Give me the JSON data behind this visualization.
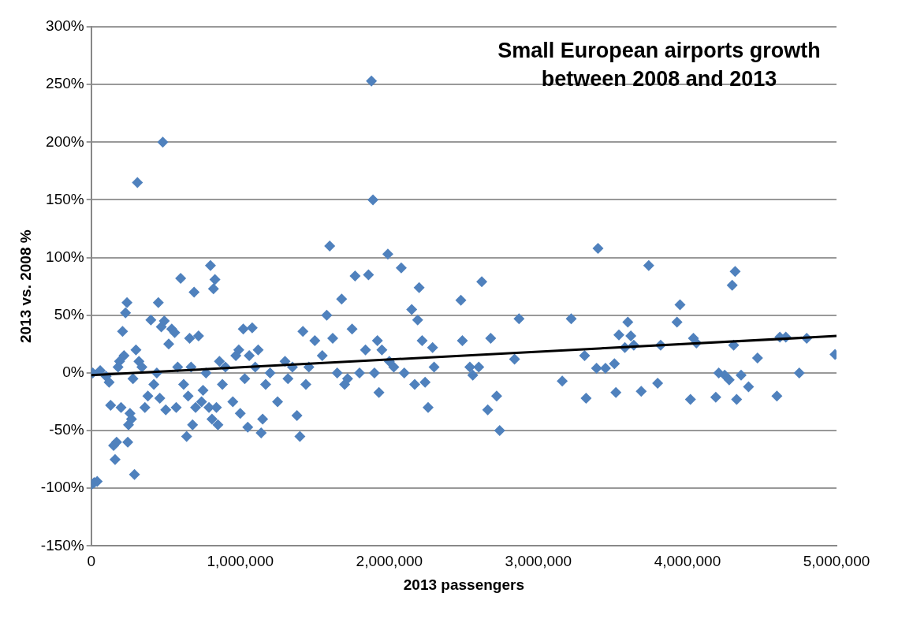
{
  "chart_data": {
    "type": "scatter",
    "title": "Small European airports growth between 2008 and 2013",
    "xlabel": "2013 passengers",
    "ylabel": "2013 vs. 2008 %",
    "grid": "y",
    "legend": false,
    "xlim": [
      0,
      5000000
    ],
    "xticks": [
      0,
      {
        "value": 1000000,
        "label": "1,000,000"
      },
      {
        "value": 2000000,
        "label": "2,000,000"
      },
      {
        "value": 3000000,
        "label": "3,000,000"
      },
      {
        "value": 4000000,
        "label": "4,000,000"
      },
      {
        "value": 5000000,
        "label": "5,000,000"
      }
    ],
    "ylim": [
      -150,
      300
    ],
    "yticks": [
      {
        "value": -150,
        "label": "-150%"
      },
      {
        "value": -100,
        "label": "-100%"
      },
      {
        "value": -50,
        "label": "-50%"
      },
      {
        "value": 0,
        "label": "0%"
      },
      {
        "value": 50,
        "label": "50%"
      },
      {
        "value": 100,
        "label": "100%"
      },
      {
        "value": 150,
        "label": "150%"
      },
      {
        "value": 200,
        "label": "200%"
      },
      {
        "value": 250,
        "label": "250%"
      },
      {
        "value": 300,
        "label": "300%"
      }
    ],
    "series": [
      {
        "color": "#4f81bd",
        "marker": "diamond",
        "x": [
          0,
          20000,
          40000,
          10000,
          60000,
          100000,
          120000,
          130000,
          150000,
          160000,
          170000,
          180000,
          190000,
          200000,
          210000,
          220000,
          230000,
          240000,
          245000,
          250000,
          260000,
          270000,
          280000,
          290000,
          300000,
          310000,
          320000,
          340000,
          360000,
          380000,
          400000,
          420000,
          440000,
          450000,
          460000,
          470000,
          480000,
          490000,
          500000,
          520000,
          540000,
          560000,
          570000,
          580000,
          600000,
          620000,
          640000,
          650000,
          660000,
          670000,
          680000,
          690000,
          700000,
          720000,
          740000,
          750000,
          770000,
          790000,
          800000,
          810000,
          820000,
          830000,
          840000,
          850000,
          860000,
          880000,
          900000,
          950000,
          970000,
          990000,
          1000000,
          1020000,
          1030000,
          1050000,
          1060000,
          1080000,
          1100000,
          1120000,
          1140000,
          1150000,
          1170000,
          1200000,
          1250000,
          1300000,
          1320000,
          1350000,
          1380000,
          1400000,
          1420000,
          1440000,
          1460000,
          1500000,
          1550000,
          1580000,
          1600000,
          1620000,
          1650000,
          1680000,
          1700000,
          1720000,
          1750000,
          1770000,
          1800000,
          1840000,
          1860000,
          1880000,
          1890000,
          1900000,
          1920000,
          1930000,
          1950000,
          1990000,
          2000000,
          2030000,
          2080000,
          2100000,
          2150000,
          2170000,
          2190000,
          2200000,
          2220000,
          2240000,
          2260000,
          2290000,
          2300000,
          2480000,
          2490000,
          2540000,
          2560000,
          2600000,
          2620000,
          2660000,
          2680000,
          2720000,
          2740000,
          2840000,
          2870000,
          3160000,
          3220000,
          3310000,
          3320000,
          3390000,
          3400000,
          3450000,
          3510000,
          3520000,
          3540000,
          3580000,
          3600000,
          3620000,
          3640000,
          3690000,
          3740000,
          3800000,
          3820000,
          3930000,
          3950000,
          4020000,
          4040000,
          4060000,
          4190000,
          4210000,
          4250000,
          4280000,
          4300000,
          4310000,
          4320000,
          4330000,
          4360000,
          4410000,
          4470000,
          4600000,
          4620000,
          4660000,
          4750000,
          4800000,
          4990000
        ],
        "values": [
          -97,
          -95,
          -94,
          0,
          2,
          -3,
          -8,
          -28,
          -63,
          -75,
          -60,
          5,
          10,
          -30,
          36,
          15,
          52,
          61,
          -60,
          -45,
          -35,
          -40,
          -5,
          -88,
          20,
          165,
          10,
          5,
          -30,
          -20,
          46,
          -10,
          0,
          61,
          -22,
          40,
          200,
          45,
          -32,
          25,
          38,
          35,
          -30,
          5,
          82,
          -10,
          -55,
          -20,
          30,
          5,
          -45,
          70,
          -30,
          32,
          -25,
          -15,
          0,
          -30,
          93,
          -40,
          73,
          81,
          -30,
          -45,
          10,
          -10,
          5,
          -25,
          15,
          20,
          -35,
          38,
          -5,
          -47,
          15,
          39,
          5,
          20,
          -52,
          -40,
          -10,
          0,
          -25,
          10,
          -5,
          5,
          -37,
          -55,
          36,
          -10,
          5,
          28,
          15,
          50,
          110,
          30,
          0,
          64,
          -10,
          -5,
          38,
          84,
          0,
          20,
          85,
          253,
          150,
          0,
          28,
          -17,
          20,
          103,
          10,
          5,
          91,
          0,
          55,
          -10,
          46,
          74,
          28,
          -8,
          -30,
          22,
          5,
          63,
          28,
          5,
          -2,
          5,
          79,
          -32,
          30,
          -20,
          -50,
          12,
          47,
          -7,
          47,
          15,
          -22,
          4,
          108,
          4,
          8,
          -17,
          33,
          22,
          44,
          32,
          24,
          -16,
          93,
          -9,
          24,
          44,
          59,
          -23,
          30,
          26,
          -21,
          0,
          -2,
          -6,
          76,
          24,
          88,
          -23,
          -2,
          -12,
          13,
          -20,
          31,
          31,
          0,
          30,
          16
        ]
      },
      {
        "type": "line",
        "color": "#000000",
        "x": [
          0,
          5000000
        ],
        "values": [
          -2,
          32
        ]
      }
    ]
  }
}
